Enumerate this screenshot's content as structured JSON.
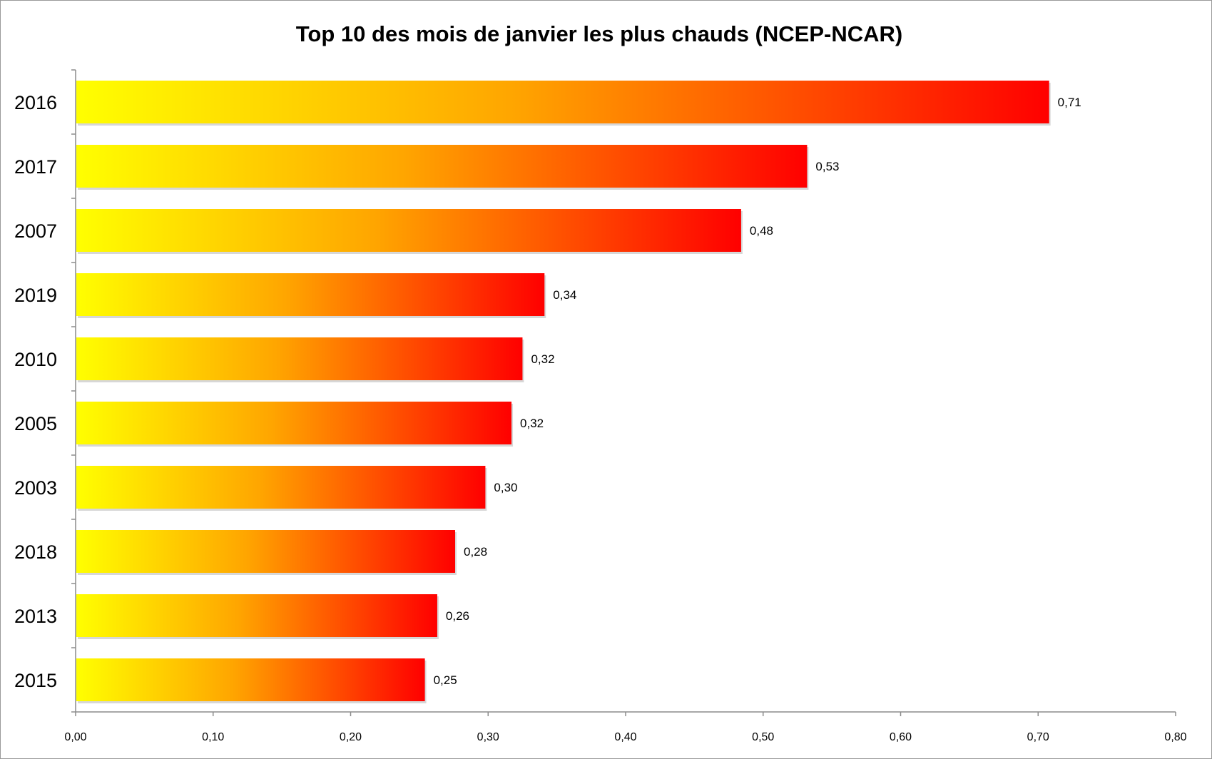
{
  "chart_data": {
    "type": "bar",
    "orientation": "horizontal",
    "title": "Top 10 des mois de janvier les plus chauds (NCEP-NCAR)",
    "categories": [
      "2016",
      "2017",
      "2007",
      "2019",
      "2010",
      "2005",
      "2003",
      "2018",
      "2013",
      "2015"
    ],
    "values": [
      0.708,
      0.532,
      0.484,
      0.341,
      0.325,
      0.317,
      0.298,
      0.276,
      0.263,
      0.254
    ],
    "value_labels": [
      "0,71",
      "0,53",
      "0,48",
      "0,34",
      "0,32",
      "0,32",
      "0,30",
      "0,28",
      "0,26",
      "0,25"
    ],
    "xlabel": "",
    "ylabel": "",
    "xlim": [
      0,
      0.8
    ],
    "x_ticks": [
      0,
      0.1,
      0.2,
      0.3,
      0.4,
      0.5,
      0.6,
      0.7,
      0.8
    ],
    "x_tick_labels": [
      "0,00",
      "0,10",
      "0,20",
      "0,30",
      "0,40",
      "0,50",
      "0,60",
      "0,70",
      "0,80"
    ],
    "grid": false,
    "legend": "none",
    "colors": {
      "gradient_start": "#ffff00",
      "gradient_mid": "#ffa500",
      "gradient_end": "#ff0000",
      "axis": "#8c8c8c",
      "frame": "#9a9a9a"
    }
  }
}
